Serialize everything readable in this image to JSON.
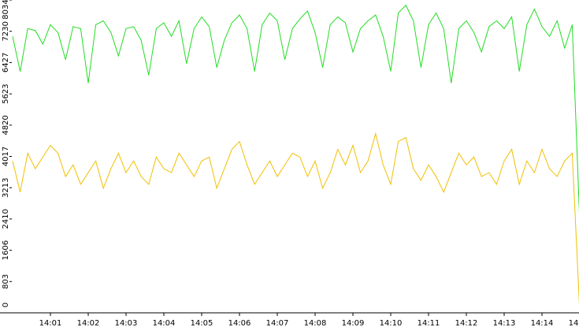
{
  "chart_data": {
    "type": "line",
    "x": [
      0,
      0.2,
      0.4,
      0.6,
      0.8,
      1,
      1.2,
      1.4,
      1.6,
      1.8,
      2,
      2.2,
      2.4,
      2.6,
      2.8,
      3,
      3.2,
      3.4,
      3.6,
      3.8,
      4,
      4.2,
      4.4,
      4.6,
      4.8,
      5,
      5.2,
      5.4,
      5.6,
      5.8,
      6,
      6.2,
      6.4,
      6.6,
      6.8,
      7,
      7.2,
      7.4,
      7.6,
      7.8,
      8,
      8.2,
      8.4,
      8.6,
      8.8,
      9,
      9.2,
      9.4,
      9.6,
      9.8,
      10,
      10.2,
      10.4,
      10.6,
      10.8,
      11,
      11.2,
      11.4,
      11.6,
      11.8,
      12,
      12.2,
      12.4,
      12.6,
      12.8,
      13,
      13.2,
      13.4,
      13.6,
      13.8,
      14,
      14.2,
      14.4,
      14.6,
      14.8,
      15
    ],
    "series": [
      {
        "color": "#22dd22",
        "values": [
          7100,
          6200,
          7300,
          7250,
          6900,
          7400,
          7200,
          6500,
          7350,
          7300,
          5900,
          7400,
          7500,
          7200,
          6600,
          7300,
          7350,
          7000,
          6100,
          7300,
          7450,
          7100,
          7500,
          6400,
          7300,
          7600,
          7350,
          6300,
          7000,
          7450,
          7650,
          7300,
          6200,
          7400,
          7700,
          7500,
          6500,
          7300,
          7550,
          7750,
          7200,
          6300,
          7400,
          7600,
          7450,
          6700,
          7300,
          7500,
          7650,
          7100,
          6200,
          7700,
          7900,
          7500,
          6300,
          7400,
          7700,
          7300,
          5900,
          7300,
          7500,
          7200,
          6700,
          7350,
          7500,
          7300,
          7600,
          6200,
          7400,
          7800,
          7350,
          7100,
          7500,
          6800,
          7400,
          2300
        ]
      },
      {
        "color": "#f0c000",
        "values": [
          3900,
          3100,
          4100,
          3700,
          4000,
          4300,
          4100,
          3500,
          3800,
          3300,
          3600,
          3900,
          3200,
          3700,
          4100,
          3600,
          3900,
          3500,
          3300,
          4000,
          3700,
          3600,
          4100,
          3800,
          3500,
          3900,
          4000,
          3200,
          3700,
          4200,
          4400,
          3800,
          3300,
          3600,
          3900,
          3500,
          3800,
          4100,
          4000,
          3500,
          3900,
          3200,
          3600,
          4200,
          3800,
          4300,
          3600,
          3900,
          4600,
          3800,
          3300,
          4400,
          4500,
          3700,
          3400,
          3800,
          3500,
          3100,
          3600,
          4100,
          3800,
          4000,
          3500,
          3600,
          3300,
          3900,
          4200,
          3300,
          3900,
          3600,
          4200,
          3700,
          3500,
          3900,
          4100,
          0
        ]
      }
    ],
    "xlim": [
      0,
      15
    ],
    "xticks": [
      {
        "value": 1,
        "label": "14:01"
      },
      {
        "value": 2,
        "label": "14:02"
      },
      {
        "value": 3,
        "label": "14:03"
      },
      {
        "value": 4,
        "label": "14:04"
      },
      {
        "value": 5,
        "label": "14:05"
      },
      {
        "value": 6,
        "label": "14:06"
      },
      {
        "value": 7,
        "label": "14:07"
      },
      {
        "value": 8,
        "label": "14:08"
      },
      {
        "value": 9,
        "label": "14:09"
      },
      {
        "value": 10,
        "label": "14:10"
      },
      {
        "value": 11,
        "label": "14:11"
      },
      {
        "value": 12,
        "label": "14:12"
      },
      {
        "value": 13,
        "label": "14:13"
      },
      {
        "value": 14,
        "label": "14:14"
      },
      {
        "value": 15,
        "label": "14:15"
      }
    ],
    "ylim": [
      0,
      8034
    ],
    "yticks": [
      0,
      803,
      1606,
      2410,
      3213,
      4017,
      4820,
      5623,
      6427,
      7230,
      8034
    ]
  }
}
